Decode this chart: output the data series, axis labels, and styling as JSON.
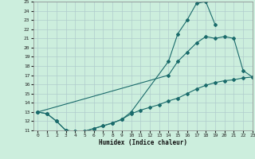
{
  "xlabel": "Humidex (Indice chaleur)",
  "bg_color": "#cceedd",
  "grid_color": "#b0cccc",
  "line_color": "#1a6b6b",
  "ylim": [
    11,
    25
  ],
  "xlim": [
    -0.5,
    23
  ],
  "yticks": [
    11,
    12,
    13,
    14,
    15,
    16,
    17,
    18,
    19,
    20,
    21,
    22,
    23,
    24,
    25
  ],
  "xticks": [
    0,
    1,
    2,
    3,
    4,
    5,
    6,
    7,
    8,
    9,
    10,
    11,
    12,
    13,
    14,
    15,
    16,
    17,
    18,
    19,
    20,
    21,
    22,
    23
  ],
  "curve1_x": [
    0,
    1,
    2,
    3,
    4,
    5,
    6,
    7,
    8,
    9,
    10,
    14,
    15,
    16,
    17,
    18,
    19
  ],
  "curve1_y": [
    13,
    12.8,
    12,
    11,
    10.9,
    10.9,
    11.2,
    11.5,
    11.8,
    12.2,
    13,
    18.5,
    21.5,
    23.0,
    24.8,
    25.0,
    22.5
  ],
  "curve2_x": [
    0,
    14,
    15,
    16,
    17,
    18,
    19,
    20,
    21,
    22,
    23
  ],
  "curve2_y": [
    13,
    17.0,
    18.5,
    19.5,
    20.5,
    21.2,
    21.0,
    21.2,
    21.0,
    17.5,
    16.8
  ],
  "curve3_x": [
    0,
    1,
    2,
    3,
    4,
    5,
    6,
    7,
    8,
    9,
    10,
    11,
    12,
    13,
    14,
    15,
    16,
    17,
    18,
    19,
    20,
    21,
    22,
    23
  ],
  "curve3_y": [
    13,
    12.8,
    12,
    11,
    10.9,
    10.9,
    11.2,
    11.5,
    11.8,
    12.2,
    12.8,
    13.2,
    13.5,
    13.8,
    14.2,
    14.5,
    15.0,
    15.5,
    15.9,
    16.2,
    16.4,
    16.5,
    16.7,
    16.8
  ]
}
